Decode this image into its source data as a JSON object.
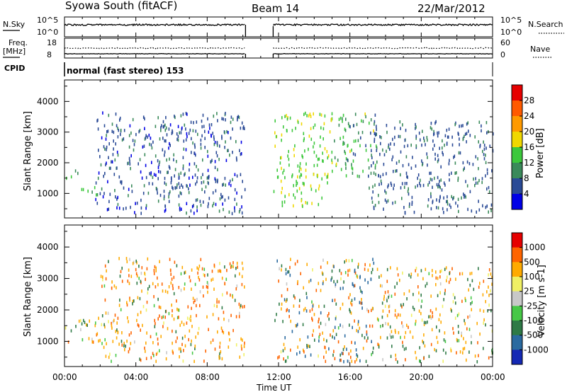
{
  "header": {
    "station": "Syowa South (fitACF)",
    "beam": "Beam 14",
    "date": "22/Mar/2012"
  },
  "strips": {
    "nsky_label": "N.Sky",
    "nsky_ticks": [
      "10^5",
      "10^0"
    ],
    "nsearch_label": "N.Search",
    "nsearch_ticks": [
      "10^5",
      "10^0"
    ],
    "freq_label": "Freq.",
    "freq_unit": "[MHz]",
    "freq_ticks": [
      "18",
      "8"
    ],
    "nave_label": "Nave",
    "nave_ticks": [
      "60",
      "0"
    ],
    "cpid_label": "CPID",
    "cpid_text": "normal (fast stereo) 153"
  },
  "time_axis": {
    "label": "Time UT",
    "ticks": [
      "00:00",
      "04:00",
      "08:00",
      "12:00",
      "16:00",
      "20:00",
      "00:00"
    ]
  },
  "colors": {
    "power": [
      "#0000e6",
      "#2a4a96",
      "#3a8a5a",
      "#3cc83c",
      "#f0d800",
      "#ff9a00",
      "#ff5a00",
      "#e60000"
    ],
    "velocity": [
      "#1428b4",
      "#2a6aa0",
      "#2e7a46",
      "#46c846",
      "#c8c8c8",
      "#f0f064",
      "#ffaa00",
      "#ff6400",
      "#e60000"
    ]
  },
  "chart_data": [
    {
      "type": "heatmap",
      "name": "power",
      "ylabel": "Slant Range [km]",
      "yticks": [
        "1000",
        "2000",
        "3000",
        "4000"
      ],
      "ylim": [
        200,
        4700
      ],
      "xlim": [
        0,
        24
      ],
      "colorbar_label": "Power [dB]",
      "colorbar_ticks": [
        "4",
        "8",
        "12",
        "16",
        "20",
        "24",
        "28"
      ],
      "clim": [
        0,
        32
      ],
      "regions": [
        {
          "t": [
            0.0,
            0.9
          ],
          "r": [
            1450,
            1750
          ],
          "v": [
            8,
            16
          ]
        },
        {
          "t": [
            0.0,
            2.1
          ],
          "r": [
            900,
            1150
          ],
          "v": [
            9,
            16
          ]
        },
        {
          "t": [
            1.7,
            10.1
          ],
          "r": [
            300,
            3600
          ],
          "v": [
            3,
            10
          ]
        },
        {
          "t": [
            5.1,
            8.6
          ],
          "r": [
            2900,
            3300
          ],
          "v": [
            3,
            7
          ]
        },
        {
          "t": [
            5.5,
            9.0
          ],
          "r": [
            1100,
            1500
          ],
          "v": [
            4,
            9
          ]
        },
        {
          "t": [
            11.7,
            15.0
          ],
          "r": [
            500,
            3600
          ],
          "v": [
            13,
            18
          ]
        },
        {
          "t": [
            15.0,
            17.5
          ],
          "r": [
            1500,
            3600
          ],
          "v": [
            5,
            17
          ]
        },
        {
          "t": [
            17.5,
            22.0
          ],
          "r": [
            1100,
            1300
          ],
          "v": [
            5,
            10
          ]
        },
        {
          "t": [
            17.0,
            24.0
          ],
          "r": [
            300,
            3300
          ],
          "v": [
            4,
            10
          ]
        }
      ],
      "gaps": [
        [
          10.15,
          11.7
        ]
      ]
    },
    {
      "type": "heatmap",
      "name": "velocity",
      "ylabel": "Slant Range [km]",
      "yticks": [
        "1000",
        "2000",
        "3000",
        "4000"
      ],
      "ylim": [
        200,
        4700
      ],
      "xlim": [
        0,
        24
      ],
      "colorbar_label": "Velocity [m s-1]",
      "colorbar_ticks": [
        "1000",
        "500",
        "100",
        "25",
        "-25",
        "-100",
        "-500",
        "-1000"
      ],
      "regions": [
        {
          "t": [
            0.0,
            2.2
          ],
          "r": [
            900,
            1800
          ],
          "v": [
            -600,
            300
          ]
        },
        {
          "t": [
            2.0,
            10.1
          ],
          "r": [
            300,
            3600
          ],
          "v": [
            -900,
            200
          ]
        },
        {
          "t": [
            11.7,
            17.5
          ],
          "r": [
            300,
            3600
          ],
          "v": [
            -1000,
            1000
          ]
        },
        {
          "t": [
            17.5,
            24.0
          ],
          "r": [
            300,
            3300
          ],
          "v": [
            -700,
            400
          ]
        }
      ],
      "gaps": [
        [
          10.15,
          11.7
        ]
      ]
    }
  ]
}
